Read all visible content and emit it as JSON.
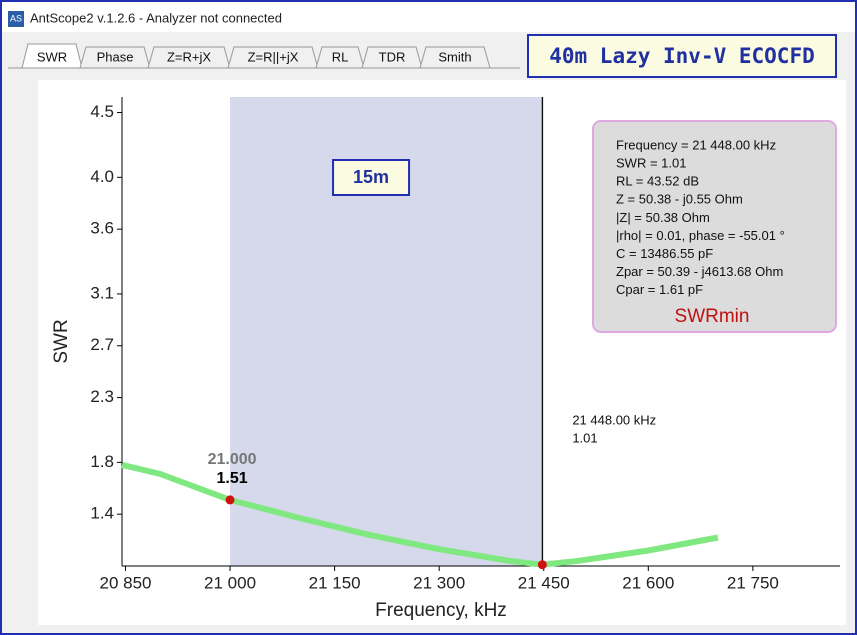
{
  "window": {
    "icon": "AS",
    "title": "AntScope2 v.1.2.6 - Analyzer not connected"
  },
  "tabs": [
    "SWR",
    "Phase",
    "Z=R+jX",
    "Z=R||+jX",
    "RL",
    "TDR",
    "Smith"
  ],
  "banner": "40m Lazy Inv-V ECOCFD",
  "chart_data": {
    "type": "line",
    "xlabel": "Frequency, kHz",
    "ylabel": "SWR",
    "color": "#80e880",
    "x": [
      20845,
      20900,
      21000,
      21100,
      21200,
      21300,
      21400,
      21448,
      21500,
      21600,
      21700
    ],
    "values": [
      1.78,
      1.71,
      1.51,
      1.37,
      1.24,
      1.13,
      1.04,
      1.01,
      1.04,
      1.12,
      1.22
    ],
    "xlim": [
      20845,
      21875
    ],
    "ylim": [
      1.0,
      4.62
    ],
    "xticks": [
      {
        "value": 20850,
        "label": "20 850"
      },
      {
        "value": 21000,
        "label": "21 000"
      },
      {
        "value": 21150,
        "label": "21 150"
      },
      {
        "value": 21300,
        "label": "21 300"
      },
      {
        "value": 21450,
        "label": "21 450"
      },
      {
        "value": 21600,
        "label": "21 600"
      },
      {
        "value": 21750,
        "label": "21 750"
      }
    ],
    "yticks": [
      1.4,
      1.8,
      2.3,
      2.7,
      3.1,
      3.6,
      {
        "value": 4,
        "label": "4.0"
      },
      4.5
    ],
    "band": {
      "range": [
        21000,
        21450
      ],
      "label": "15m"
    },
    "markers": [
      {
        "x": 21000,
        "y": 1.51,
        "x_label": "21.000",
        "y_label": "1.51"
      },
      {
        "x": 21448,
        "y": 1.01
      }
    ],
    "cursor": {
      "x": 21448,
      "freq_label": "21 448.00 kHz",
      "swr_label": "1.01"
    },
    "info": {
      "lines": [
        "Frequency = 21 448.00 kHz",
        "SWR = 1.01",
        "RL = 43.52 dB",
        "Z = 50.38 - j0.55 Ohm",
        "|Z| = 50.38 Ohm",
        "|rho| = 0.01, phase = -55.01 °",
        "C = 13486.55 pF",
        "Zpar = 50.39 - j4613.68 Ohm",
        "Cpar = 1.61 pF"
      ],
      "note": "SWRmin"
    }
  }
}
